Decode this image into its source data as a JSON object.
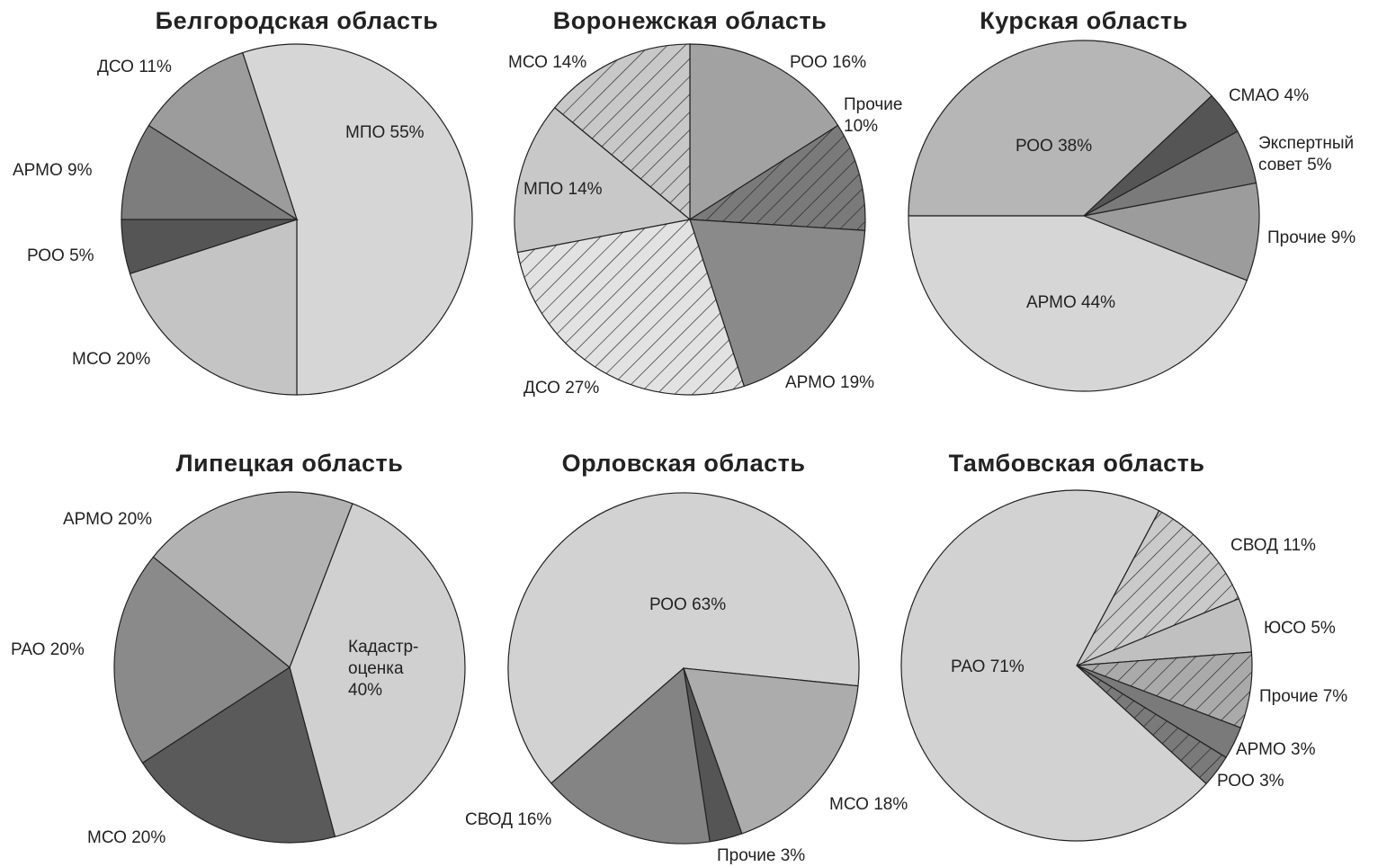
{
  "chart_data": [
    {
      "type": "pie",
      "title": "Белгородская область",
      "categories": [
        "МПО",
        "МСО",
        "РОО",
        "АРМО",
        "ДСО"
      ],
      "values": [
        55,
        20,
        5,
        9,
        11
      ],
      "value_labels": [
        "55%",
        "20%",
        "5%",
        "9%",
        "11%"
      ],
      "colors": [
        "#d6d6d6",
        "#c4c4c4",
        "#555555",
        "#7d7d7d",
        "#9c9c9c"
      ],
      "hatch": [
        false,
        false,
        false,
        false,
        false
      ]
    },
    {
      "type": "pie",
      "title": "Воронежская область",
      "categories": [
        "РОО",
        "Прочие",
        "АРМО",
        "ДСО",
        "МПО",
        "МСО"
      ],
      "values": [
        16,
        10,
        19,
        27,
        14,
        14
      ],
      "value_labels": [
        "16%",
        "10%",
        "19%",
        "27%",
        "14%",
        "14%"
      ],
      "colors": [
        "#a2a2a2",
        "#7a7a7a",
        "#8a8a8a",
        "#e2e2e2",
        "#c8c8c8",
        "#c8c8c8"
      ],
      "hatch": [
        false,
        true,
        false,
        true,
        false,
        true
      ]
    },
    {
      "type": "pie",
      "title": "Курская область",
      "categories": [
        "РОО",
        "СМАО",
        "Экспертный совет",
        "Прочие",
        "АРМО"
      ],
      "values": [
        38,
        4,
        5,
        9,
        44
      ],
      "value_labels": [
        "38%",
        "4%",
        "5%",
        "9%",
        "44%"
      ],
      "colors": [
        "#b6b6b6",
        "#555555",
        "#7a7a7a",
        "#9c9c9c",
        "#d6d6d6"
      ],
      "hatch": [
        false,
        false,
        false,
        false,
        false
      ]
    },
    {
      "type": "pie",
      "title": "Липецкая область",
      "categories": [
        "Кадастр-оценка",
        "МСО",
        "РАО",
        "АРМО"
      ],
      "values": [
        40,
        20,
        20,
        20
      ],
      "value_labels": [
        "40%",
        "20%",
        "20%",
        "20%"
      ],
      "colors": [
        "#d0d0d0",
        "#5a5a5a",
        "#8a8a8a",
        "#b2b2b2"
      ],
      "hatch": [
        false,
        false,
        false,
        false
      ]
    },
    {
      "type": "pie",
      "title": "Орловская область",
      "categories": [
        "РОО",
        "МСО",
        "Прочие",
        "СВОД"
      ],
      "values": [
        63,
        18,
        3,
        16
      ],
      "value_labels": [
        "63%",
        "18%",
        "3%",
        "16%"
      ],
      "colors": [
        "#d2d2d2",
        "#acacac",
        "#555555",
        "#848484"
      ],
      "hatch": [
        false,
        false,
        false,
        false
      ]
    },
    {
      "type": "pie",
      "title": "Тамбовская область",
      "categories": [
        "СВОД",
        "ЮСО",
        "Прочие",
        "АРМО",
        "РОО",
        "РАО"
      ],
      "values": [
        11,
        5,
        7,
        3,
        3,
        71
      ],
      "value_labels": [
        "11%",
        "5%",
        "7%",
        "3%",
        "3%",
        "71%"
      ],
      "colors": [
        "#cacaca",
        "#c0c0c0",
        "#aaaaaa",
        "#7a7a7a",
        "#7a7a7a",
        "#d2d2d2"
      ],
      "hatch": [
        true,
        false,
        true,
        false,
        true,
        false
      ]
    }
  ]
}
